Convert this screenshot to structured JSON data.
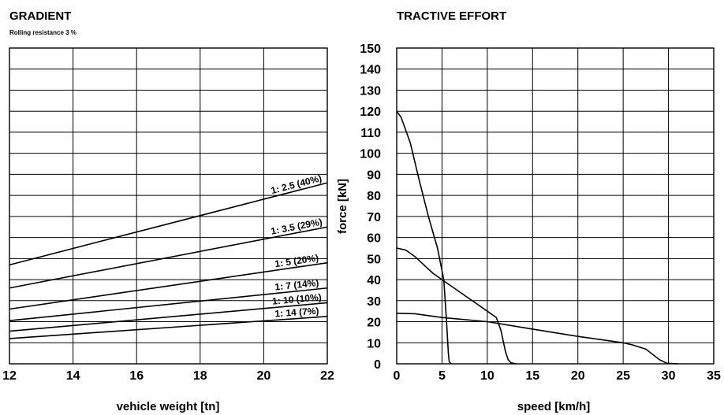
{
  "chart_data": [
    {
      "type": "line",
      "title": "GRADIENT",
      "subtitle": "Rolling resistance 3 %",
      "xlabel": "vehicle weight [tn]",
      "ylabel": "",
      "xlim": [
        12,
        22
      ],
      "x_ticks": [
        "12",
        "14",
        "16",
        "18",
        "20",
        "22"
      ],
      "grid": true,
      "series": [
        {
          "name": "1: 2.5 (40%)",
          "x": [
            12,
            22
          ],
          "y": [
            47,
            86
          ]
        },
        {
          "name": "1: 3.5 (29%)",
          "x": [
            12,
            22
          ],
          "y": [
            36,
            65
          ]
        },
        {
          "name": "1: 5 (20%)",
          "x": [
            12,
            22
          ],
          "y": [
            26,
            48
          ]
        },
        {
          "name": "1: 7 (14%)",
          "x": [
            12,
            22
          ],
          "y": [
            20.5,
            36
          ]
        },
        {
          "name": "1: 10 (10%)",
          "x": [
            12,
            22
          ],
          "y": [
            15.5,
            29
          ]
        },
        {
          "name": "1: 14 (7%)",
          "x": [
            12,
            22
          ],
          "y": [
            12,
            22.5
          ]
        }
      ]
    },
    {
      "type": "line",
      "title": "TRACTIVE EFFORT",
      "xlabel": "speed [km/h]",
      "ylabel": "force [kN]",
      "xlim": [
        0,
        35
      ],
      "ylim": [
        0,
        150
      ],
      "x_ticks": [
        "0",
        "5",
        "10",
        "15",
        "20",
        "25",
        "30",
        "35"
      ],
      "y_ticks": [
        "0",
        "10",
        "20",
        "30",
        "40",
        "50",
        "60",
        "70",
        "80",
        "90",
        "100",
        "110",
        "120",
        "130",
        "140",
        "150"
      ],
      "grid": true,
      "series": [
        {
          "x": [
            0,
            0.5,
            1.5,
            2.5,
            3.5,
            4.5,
            5.2,
            5.5,
            5.7,
            5.8,
            6.0
          ],
          "y": [
            120,
            117,
            105,
            87,
            70,
            55,
            40,
            20,
            5,
            1,
            0
          ]
        },
        {
          "x": [
            0,
            1,
            2,
            3,
            4,
            5,
            6,
            7,
            8,
            9,
            10,
            11,
            11.5,
            12,
            12.3,
            12.6,
            13.2
          ],
          "y": [
            55,
            54,
            51,
            47,
            43,
            40,
            37,
            34,
            31,
            28,
            25,
            22,
            16,
            6,
            2,
            0.5,
            0
          ]
        },
        {
          "x": [
            0,
            2,
            5,
            10,
            15,
            20,
            25,
            26,
            27.5,
            29,
            29.8,
            31
          ],
          "y": [
            24,
            23.8,
            22,
            20,
            16.5,
            13,
            10,
            9,
            7,
            2,
            0.3,
            0
          ]
        }
      ]
    }
  ]
}
